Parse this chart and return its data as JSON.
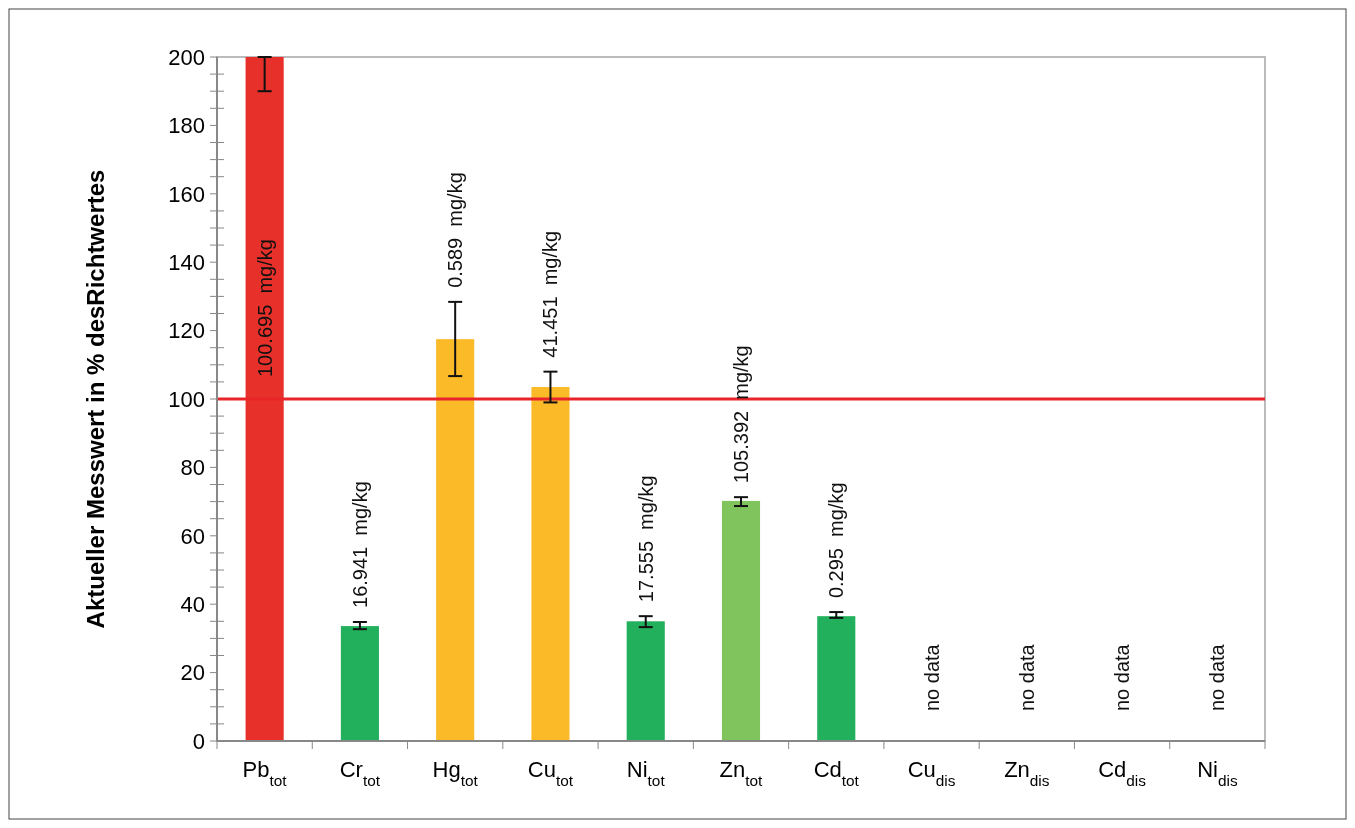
{
  "chart_data": {
    "type": "bar",
    "ylabel": "Aktueller Messwert in % desRichtwertes",
    "categories": [
      "Pb$_{tot}$",
      "Cr$_{tot}$",
      "Hg$_{tot}$",
      "Cu$_{tot}$",
      "Ni$_{tot}$",
      "Zn$_{tot}$",
      "Cd$_{tot}$",
      "Cu$_{dis}$",
      "Zn$_{dis}$",
      "Cd$_{dis}$",
      "Ni$_{dis}$"
    ],
    "values": [
      200,
      33.6,
      117.5,
      103.5,
      35,
      70.2,
      36.5,
      null,
      null,
      null,
      null
    ],
    "colors": [
      "#e8302a",
      "#22b05c",
      "#fbba28",
      "#fbba28",
      "#22b05c",
      "#80c45e",
      "#22b05c",
      null,
      null,
      null,
      null
    ],
    "errors": [
      [
        190,
        200
      ],
      [
        32.7,
        34.8
      ],
      [
        106.7,
        128.4
      ],
      [
        99,
        108
      ],
      [
        33.3,
        36.5
      ],
      [
        68.7,
        71.3
      ],
      [
        36,
        37.7
      ],
      null,
      null,
      null,
      null
    ],
    "annotations": [
      "100.695  mg/kg",
      "16.941  mg/kg",
      "0.589  mg/kg",
      "41.451  mg/kg",
      "17.555  mg/kg",
      "105.392  mg/kg",
      "0.295  mg/kg",
      "no data",
      "no data",
      "no data",
      "no data"
    ],
    "ylim": [
      0,
      200
    ],
    "yticks": [
      0,
      {
        "value": 5,
        "label": null
      },
      {
        "value": 10,
        "label": null
      },
      {
        "value": 15,
        "label": null
      },
      20,
      {
        "value": 25,
        "label": null
      },
      {
        "value": 30,
        "label": null
      },
      {
        "value": 35,
        "label": null
      },
      40,
      {
        "value": 45,
        "label": null
      },
      {
        "value": 50,
        "label": null
      },
      {
        "value": 55,
        "label": null
      },
      60,
      {
        "value": 65,
        "label": null
      },
      {
        "value": 70,
        "label": null
      },
      {
        "value": 75,
        "label": null
      },
      80,
      {
        "value": 85,
        "label": null
      },
      {
        "value": 90,
        "label": null
      },
      {
        "value": 95,
        "label": null
      },
      100,
      {
        "value": 105,
        "label": null
      },
      {
        "value": 110,
        "label": null
      },
      {
        "value": 115,
        "label": null
      },
      120,
      {
        "value": 125,
        "label": null
      },
      {
        "value": 130,
        "label": null
      },
      {
        "value": 135,
        "label": null
      },
      140,
      {
        "value": 145,
        "label": null
      },
      {
        "value": 150,
        "label": null
      },
      {
        "value": 155,
        "label": null
      },
      160,
      {
        "value": 165,
        "label": null
      },
      {
        "value": 170,
        "label": null
      },
      {
        "value": 175,
        "label": null
      },
      180,
      {
        "value": 185,
        "label": null
      },
      {
        "value": 190,
        "label": null
      },
      {
        "value": 195,
        "label": null
      },
      200
    ],
    "ref_lines": [
      {
        "axis": "y",
        "value": 100,
        "color": "#e8262a"
      }
    ],
    "grid": false
  }
}
